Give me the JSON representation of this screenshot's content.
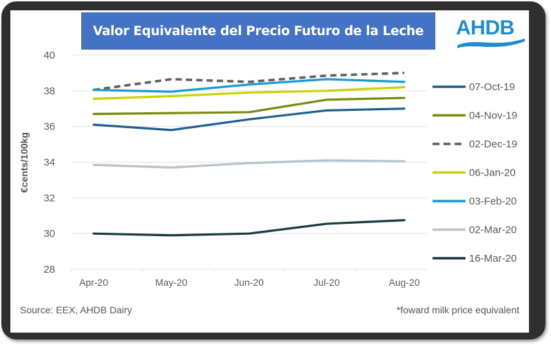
{
  "title": "Valor Equivalente del Precio Futuro de la Leche",
  "logo": {
    "text": "AHDB",
    "color": "#1f8dc9"
  },
  "footer": {
    "source": "Source: EEX, AHDB Dairy",
    "note": "*foward milk price equivalent"
  },
  "chart_data": {
    "type": "line",
    "title": "Valor Equivalente del Precio Futuro de la Leche",
    "xlabel": "",
    "ylabel": "€cents/100kg",
    "categories": [
      "Apr-20",
      "May-20",
      "Jun-20",
      "Jul-20",
      "Aug-20"
    ],
    "ylim": [
      28,
      40
    ],
    "yticks": [
      28,
      30,
      32,
      34,
      36,
      38,
      40
    ],
    "grid": true,
    "legend_position": "right",
    "series": [
      {
        "name": "07-Oct-19",
        "color": "#1f5f8b",
        "dashed": false,
        "values": [
          36.1,
          35.8,
          36.4,
          36.9,
          37.0
        ]
      },
      {
        "name": "04-Nov-19",
        "color": "#7a8a12",
        "dashed": false,
        "values": [
          36.7,
          36.75,
          36.8,
          37.5,
          37.6
        ]
      },
      {
        "name": "02-Dec-19",
        "color": "#5f5f5f",
        "dashed": true,
        "values": [
          38.05,
          38.65,
          38.5,
          38.85,
          39.0
        ]
      },
      {
        "name": "06-Jan-20",
        "color": "#c8d400",
        "dashed": false,
        "values": [
          37.55,
          37.7,
          37.9,
          38.0,
          38.2
        ]
      },
      {
        "name": "03-Feb-20",
        "color": "#1a9ad6",
        "dashed": false,
        "values": [
          38.05,
          37.95,
          38.35,
          38.65,
          38.5
        ]
      },
      {
        "name": "02-Mar-20",
        "color": "#b4c3cd",
        "dashed": false,
        "values": [
          33.85,
          33.7,
          33.95,
          34.1,
          34.05
        ]
      },
      {
        "name": "16-Mar-20",
        "color": "#1c3a44",
        "dashed": false,
        "values": [
          30.0,
          29.9,
          30.0,
          30.55,
          30.75
        ]
      }
    ]
  }
}
